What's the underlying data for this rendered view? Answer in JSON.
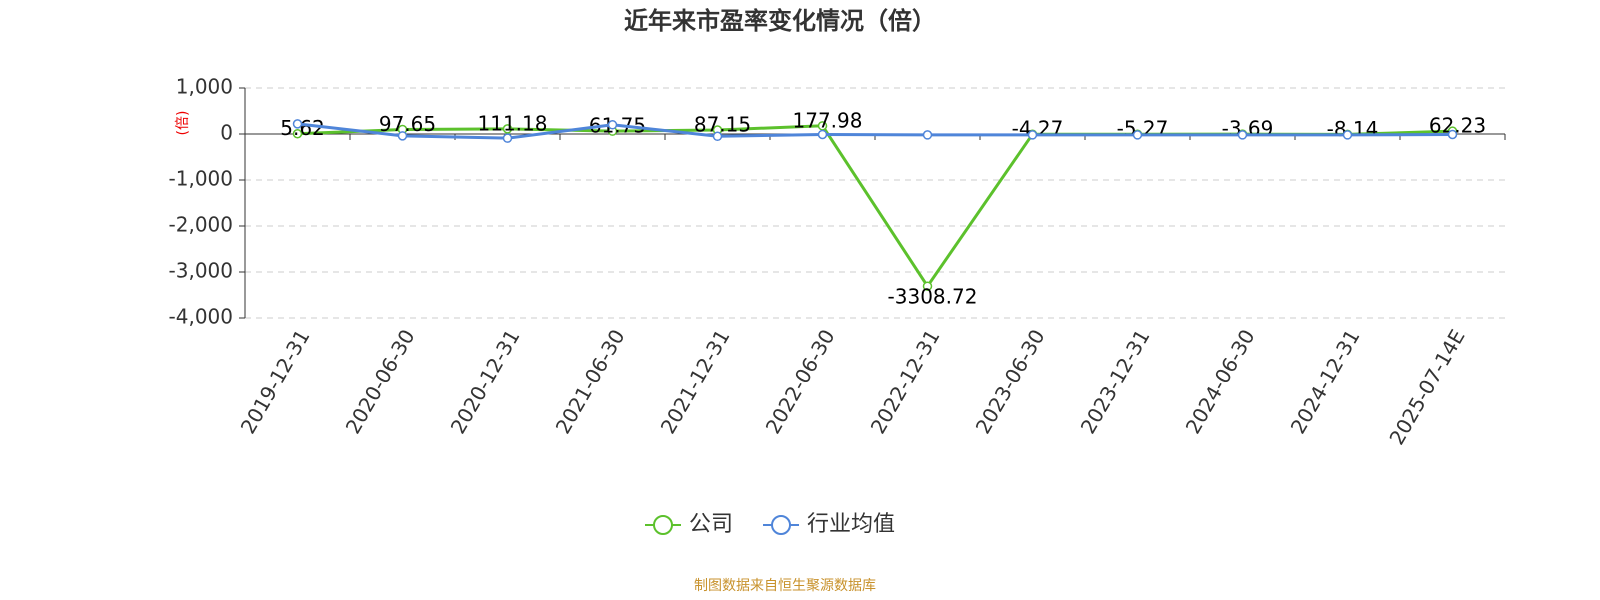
{
  "chart_data": {
    "type": "line",
    "title": "近年来市盈率变化情况（倍）",
    "y_label": "(倍)",
    "categories": [
      "2019-12-31",
      "2020-06-30",
      "2020-12-31",
      "2021-06-30",
      "2021-12-31",
      "2022-06-30",
      "2022-12-31",
      "2023-06-30",
      "2023-12-31",
      "2024-06-30",
      "2024-12-31",
      "2025-07-14E"
    ],
    "series": [
      {
        "name": "公司",
        "color": "#5cc12c",
        "values": [
          5.62,
          97.65,
          111.18,
          61.75,
          87.15,
          177.98,
          -3308.72,
          -4.27,
          -5.27,
          -3.69,
          -8.14,
          62.23
        ],
        "labels": true
      },
      {
        "name": "行业均值",
        "color": "#4f85d9",
        "values": [
          220,
          -40,
          -90,
          200,
          -50,
          -10,
          -20,
          -20,
          -20,
          -20,
          -20,
          -10
        ],
        "labels": false
      }
    ],
    "ylim": [
      -4000,
      1000
    ],
    "yticks": [
      {
        "value": -4000,
        "label": "-4,000"
      },
      {
        "value": -3000,
        "label": "-3,000"
      },
      {
        "value": -2000,
        "label": "-2,000"
      },
      {
        "value": -1000,
        "label": "-1,000"
      },
      0,
      {
        "value": 1000,
        "label": "1,000"
      }
    ],
    "grid": true,
    "source": "制图数据来自恒生聚源数据库"
  }
}
